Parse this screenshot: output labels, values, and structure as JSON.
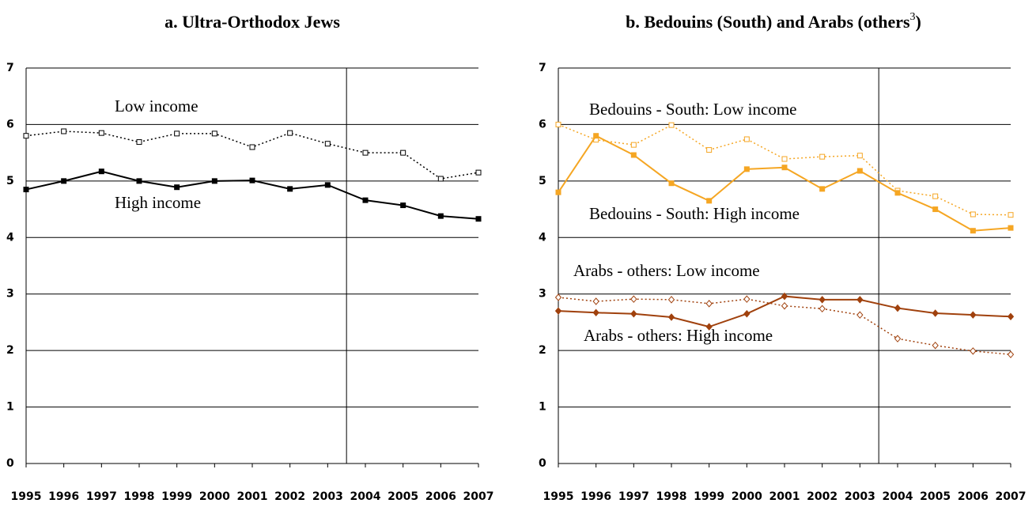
{
  "chart_data": [
    {
      "type": "line",
      "title": "a. Ultra-Orthodox Jews",
      "x": [
        1995,
        1996,
        1997,
        1998,
        1999,
        2000,
        2001,
        2002,
        2003,
        2004,
        2005,
        2006,
        2007
      ],
      "xlim": [
        1995,
        2007
      ],
      "xticks": [
        1995,
        1996,
        1997,
        1998,
        1999,
        2000,
        2001,
        2002,
        2003,
        2004,
        2005,
        2006,
        2007
      ],
      "ylim": [
        0,
        7
      ],
      "yticks": [
        0,
        1,
        2,
        3,
        4,
        5,
        6,
        7
      ],
      "grid": true,
      "reference_line": {
        "x": 2003.5
      },
      "series": [
        {
          "name": "Low income",
          "color": "#000000",
          "dotted": true,
          "marker": "square",
          "filled": false,
          "values": [
            5.8,
            5.88,
            5.85,
            5.69,
            5.84,
            5.84,
            5.6,
            5.85,
            5.66,
            5.5,
            5.5,
            5.04,
            5.15
          ]
        },
        {
          "name": "High income",
          "color": "#000000",
          "dotted": false,
          "marker": "square",
          "filled": true,
          "values": [
            4.85,
            5.0,
            5.17,
            5.0,
            4.89,
            5.0,
            5.01,
            4.86,
            4.93,
            4.66,
            4.57,
            4.38,
            4.33
          ]
        }
      ]
    },
    {
      "type": "line",
      "title": {
        "text": "b. Bedouins (South) and Arabs (others",
        "superscript": "3",
        "suffix": ")"
      },
      "x": [
        1995,
        1996,
        1997,
        1998,
        1999,
        2000,
        2001,
        2002,
        2003,
        2004,
        2005,
        2006,
        2007
      ],
      "xlim": [
        1995,
        2007
      ],
      "xticks": [
        1995,
        1996,
        1997,
        1998,
        1999,
        2000,
        2001,
        2002,
        2003,
        2004,
        2005,
        2006,
        2007
      ],
      "ylim": [
        0,
        7
      ],
      "yticks": [
        0,
        1,
        2,
        3,
        4,
        5,
        6,
        7
      ],
      "grid": true,
      "reference_line": {
        "x": 2003.5
      },
      "series": [
        {
          "name": "Bedouins - South: Low income",
          "color": "#f5a623",
          "dotted": true,
          "marker": "square",
          "filled": false,
          "values": [
            6.0,
            5.73,
            5.64,
            5.99,
            5.55,
            5.74,
            5.39,
            5.43,
            5.45,
            4.83,
            4.73,
            4.41,
            4.4
          ]
        },
        {
          "name": "Bedouins - South: High income",
          "color": "#f5a623",
          "dotted": false,
          "marker": "square",
          "filled": true,
          "values": [
            4.8,
            5.8,
            5.46,
            4.96,
            4.65,
            5.21,
            5.24,
            4.86,
            5.18,
            4.79,
            4.5,
            4.12,
            4.17
          ]
        },
        {
          "name": "Arabs - others: Low income",
          "color": "#a0410d",
          "dotted": true,
          "marker": "diamond",
          "filled": false,
          "values": [
            2.94,
            2.87,
            2.91,
            2.9,
            2.83,
            2.91,
            2.79,
            2.74,
            2.63,
            2.21,
            2.09,
            1.99,
            1.93
          ]
        },
        {
          "name": "Arabs - others: High income",
          "color": "#a0410d",
          "dotted": false,
          "marker": "diamond",
          "filled": true,
          "values": [
            2.7,
            2.67,
            2.65,
            2.59,
            2.42,
            2.65,
            2.96,
            2.9,
            2.9,
            2.75,
            2.66,
            2.63,
            2.6
          ]
        }
      ]
    }
  ]
}
